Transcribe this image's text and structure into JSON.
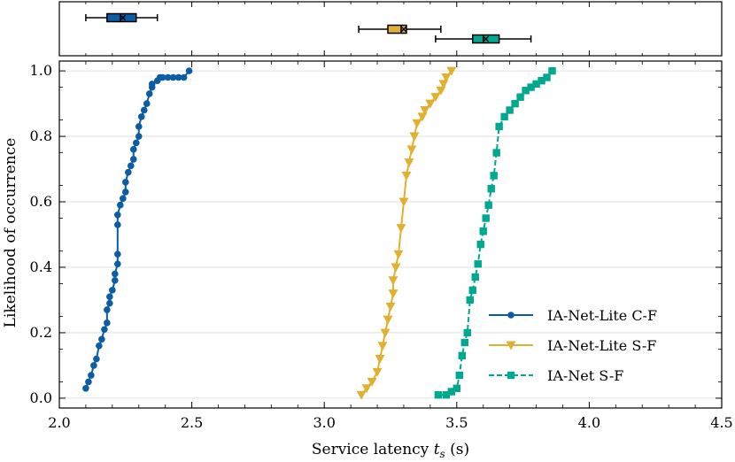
{
  "chart_data": {
    "type": "line",
    "xlabel": "Service latency t_s (s)",
    "xlabel_parts": {
      "prefix": "Service latency ",
      "var": "t",
      "sub": "s",
      "suffix": " (s)"
    },
    "ylabel": "Likelihood of occurrence",
    "xlim": [
      2.0,
      4.5
    ],
    "ylim": [
      -0.03,
      1.03
    ],
    "xticks": [
      "2.0",
      "2.5",
      "3.0",
      "3.5",
      "4.0",
      "4.5"
    ],
    "yticks": [
      "0.0",
      "0.2",
      "0.4",
      "0.6",
      "0.8",
      "1.0"
    ],
    "grid": "horizontal",
    "legend_position": "lower-right",
    "series": [
      {
        "name": "IA-Net-Lite C-F",
        "color": "#0C5DA5",
        "marker": "circle",
        "linestyle": "solid",
        "boxplot": {
          "min": 2.1,
          "q1": 2.18,
          "median": 2.23,
          "mean": 2.24,
          "q3": 2.29,
          "max": 2.37
        },
        "x": [
          2.1,
          2.11,
          2.12,
          2.13,
          2.14,
          2.15,
          2.16,
          2.17,
          2.18,
          2.18,
          2.19,
          2.19,
          2.2,
          2.21,
          2.21,
          2.22,
          2.22,
          2.22,
          2.22,
          2.23,
          2.24,
          2.25,
          2.25,
          2.26,
          2.27,
          2.28,
          2.28,
          2.29,
          2.3,
          2.3,
          2.31,
          2.32,
          2.33,
          2.34,
          2.35,
          2.35,
          2.37,
          2.38,
          2.39,
          2.41,
          2.43,
          2.45,
          2.47,
          2.49
        ],
        "y": [
          0.03,
          0.05,
          0.07,
          0.1,
          0.12,
          0.16,
          0.18,
          0.21,
          0.23,
          0.27,
          0.29,
          0.31,
          0.33,
          0.36,
          0.38,
          0.41,
          0.44,
          0.53,
          0.56,
          0.59,
          0.61,
          0.63,
          0.66,
          0.69,
          0.71,
          0.73,
          0.76,
          0.78,
          0.8,
          0.83,
          0.86,
          0.88,
          0.9,
          0.93,
          0.95,
          0.96,
          0.97,
          0.98,
          0.98,
          0.98,
          0.98,
          0.98,
          0.98,
          1.0
        ]
      },
      {
        "name": "IA-Net-Lite S-F",
        "color": "#E0B030",
        "marker": "triangle-down",
        "linestyle": "solid",
        "boxplot": {
          "min": 3.13,
          "q1": 3.24,
          "median": 3.29,
          "mean": 3.3,
          "q3": 3.31,
          "max": 3.44
        },
        "x": [
          3.14,
          3.16,
          3.18,
          3.2,
          3.21,
          3.22,
          3.23,
          3.24,
          3.25,
          3.26,
          3.26,
          3.27,
          3.28,
          3.29,
          3.3,
          3.31,
          3.32,
          3.33,
          3.34,
          3.35,
          3.37,
          3.38,
          3.4,
          3.42,
          3.44,
          3.45,
          3.46,
          3.48
        ],
        "y": [
          0.01,
          0.03,
          0.05,
          0.08,
          0.12,
          0.16,
          0.2,
          0.24,
          0.28,
          0.32,
          0.36,
          0.4,
          0.44,
          0.52,
          0.6,
          0.68,
          0.72,
          0.76,
          0.8,
          0.84,
          0.86,
          0.88,
          0.9,
          0.92,
          0.94,
          0.96,
          0.98,
          1.0
        ]
      },
      {
        "name": "IA-Net S-F",
        "color": "#00A88F",
        "marker": "square",
        "linestyle": "dashed",
        "boxplot": {
          "min": 3.42,
          "q1": 3.56,
          "median": 3.6,
          "mean": 3.61,
          "q3": 3.66,
          "max": 3.78
        },
        "x": [
          3.43,
          3.46,
          3.48,
          3.5,
          3.51,
          3.52,
          3.53,
          3.54,
          3.55,
          3.56,
          3.57,
          3.58,
          3.59,
          3.6,
          3.61,
          3.62,
          3.63,
          3.64,
          3.65,
          3.66,
          3.68,
          3.7,
          3.72,
          3.74,
          3.76,
          3.78,
          3.8,
          3.82,
          3.84,
          3.86
        ],
        "y": [
          0.01,
          0.01,
          0.02,
          0.03,
          0.07,
          0.13,
          0.17,
          0.2,
          0.3,
          0.33,
          0.37,
          0.41,
          0.47,
          0.51,
          0.55,
          0.59,
          0.64,
          0.68,
          0.75,
          0.83,
          0.86,
          0.88,
          0.9,
          0.92,
          0.94,
          0.95,
          0.96,
          0.97,
          0.98,
          1.0
        ]
      }
    ]
  }
}
